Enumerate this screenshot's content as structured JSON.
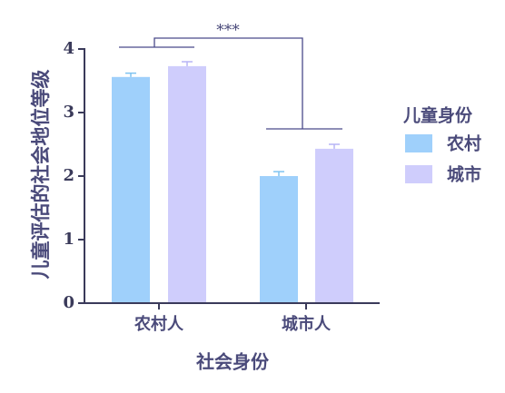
{
  "chart_data": {
    "type": "bar",
    "categories": [
      "农村人",
      "城市人"
    ],
    "series": [
      {
        "name": "农村",
        "color": "#9fd0fb",
        "values": [
          3.56,
          2.0
        ],
        "errors": [
          0.06,
          0.07
        ]
      },
      {
        "name": "城市",
        "color": "#cfcdfc",
        "values": [
          3.73,
          2.43
        ],
        "errors": [
          0.07,
          0.07
        ]
      }
    ],
    "xlabel": "社会身份",
    "ylabel": "儿童评估的社会地位等级",
    "ylim": [
      0,
      4
    ],
    "yticks": [
      "0",
      "1",
      "2",
      "3",
      "4"
    ],
    "legend": {
      "title": "儿童身份",
      "placement": "right"
    },
    "significance": {
      "label": "***"
    },
    "grid": false
  }
}
